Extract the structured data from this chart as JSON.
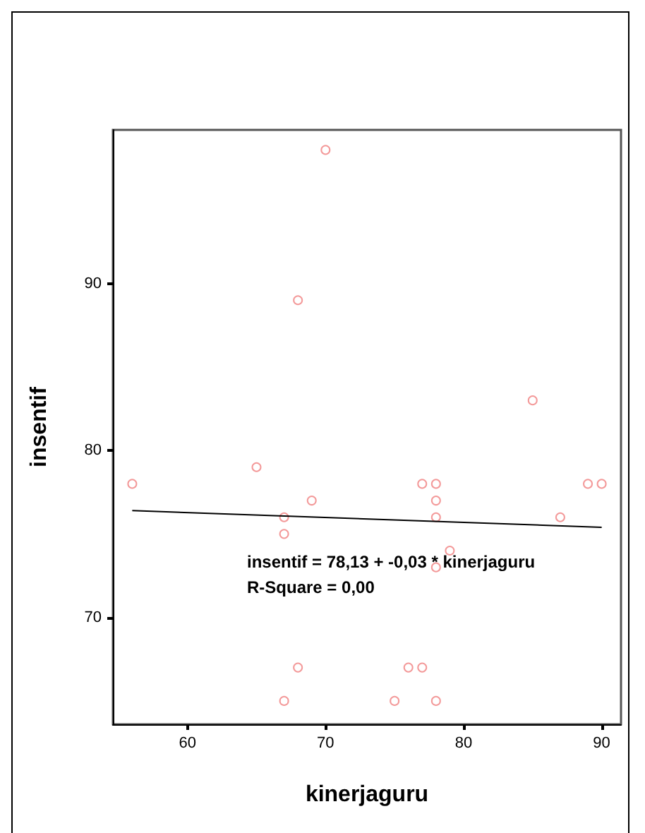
{
  "chart_data": {
    "type": "scatter",
    "xlabel": "kinerjaguru",
    "ylabel": "insentif",
    "xlim": [
      54.6,
      91.4
    ],
    "xticks": [
      60,
      70,
      80,
      90
    ],
    "ylim": [
      63.6,
      99.2
    ],
    "yticks": [
      70,
      80,
      90
    ],
    "grid": false,
    "marker": "circle",
    "series": [
      {
        "color": "#f08080",
        "x": [
          56,
          65,
          67,
          67,
          69,
          68,
          70,
          68,
          67,
          75,
          76,
          77,
          78,
          77,
          78,
          78,
          78,
          79,
          78,
          85,
          87,
          89,
          90
        ],
        "values": [
          78,
          79,
          76,
          75,
          77,
          89,
          98,
          67,
          65,
          65,
          67,
          67,
          65,
          78,
          78,
          77,
          76,
          74,
          73,
          83,
          76,
          78,
          78
        ]
      },
      {
        "type": "line",
        "color": "#000000",
        "x": [
          56,
          90
        ],
        "values": [
          76.4,
          75.4
        ],
        "marker": "none"
      }
    ],
    "annotations": [
      "insentif = 78,13 + -0,03 * kinerjaguru",
      "R-Square = 0,00"
    ]
  }
}
